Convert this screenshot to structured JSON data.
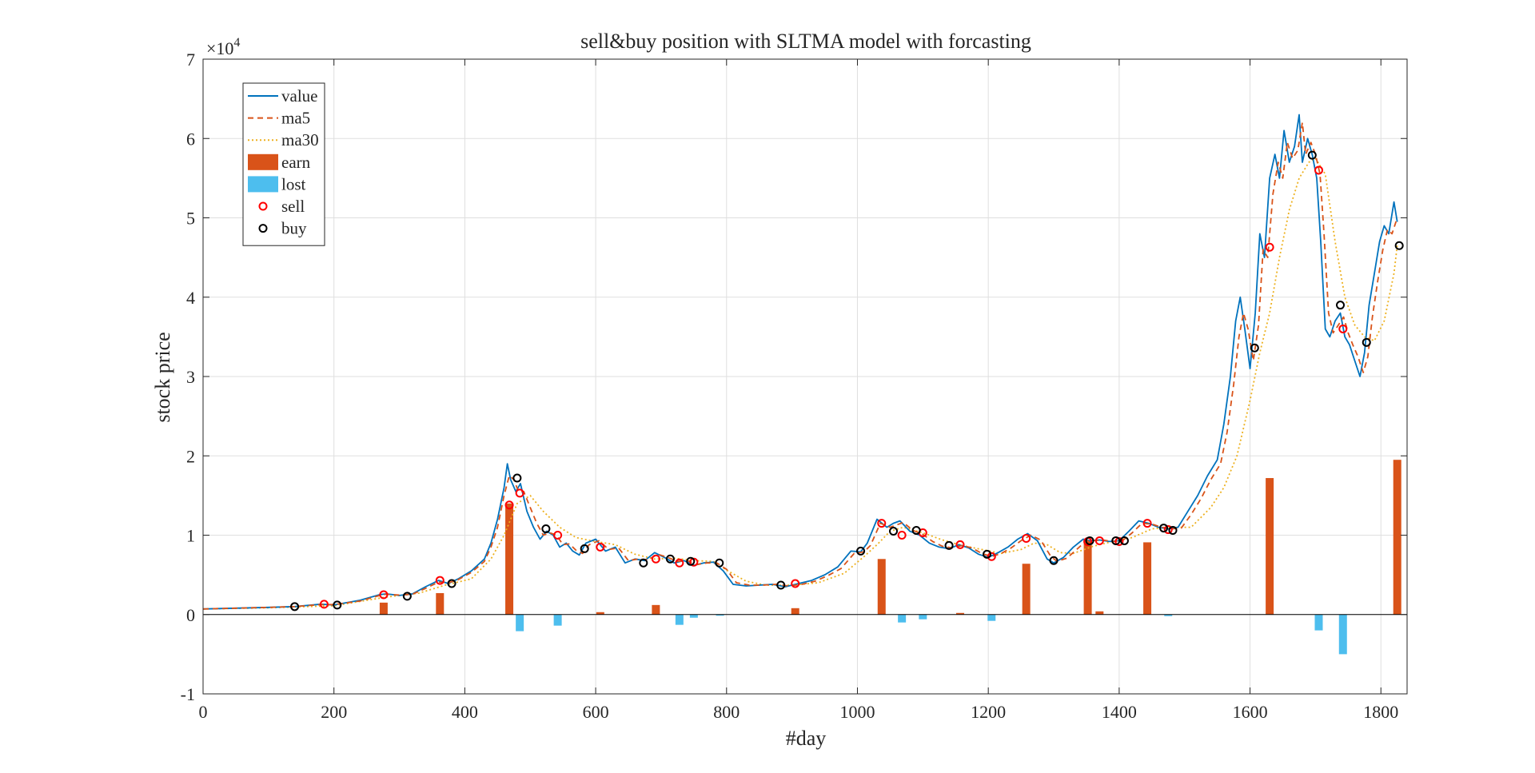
{
  "chart_data": {
    "type": "line",
    "title": "sell&buy position with SLTMA model with forcasting",
    "xlabel": "#day",
    "ylabel": "stock price",
    "y_exponent_label": "×10^4",
    "y_exponent_base": "×10",
    "y_exponent_power": "4",
    "xlim": [
      0,
      1840
    ],
    "ylim": [
      -10000,
      70000
    ],
    "x_ticks": [
      0,
      200,
      400,
      600,
      800,
      1000,
      1200,
      1400,
      1600,
      1800
    ],
    "x_tick_labels": [
      "0",
      "200",
      "400",
      "600",
      "800",
      "1000",
      "1200",
      "1400",
      "1600",
      "1800"
    ],
    "y_ticks": [
      -10000,
      0,
      10000,
      20000,
      30000,
      40000,
      50000,
      60000,
      70000
    ],
    "y_tick_labels": [
      "-1",
      "0",
      "1",
      "2",
      "3",
      "4",
      "5",
      "6",
      "7"
    ],
    "grid": true,
    "legend_placement": "top-left",
    "legend": [
      {
        "label": "value",
        "kind": "line-solid",
        "color": "#0072BD"
      },
      {
        "label": "ma5",
        "kind": "line-dashed",
        "color": "#D95319"
      },
      {
        "label": "ma30",
        "kind": "line-dotted",
        "color": "#EDB120"
      },
      {
        "label": "earn",
        "kind": "bar",
        "color": "#D95319"
      },
      {
        "label": "lost",
        "kind": "bar",
        "color": "#4DBEEE"
      },
      {
        "label": "sell",
        "kind": "marker",
        "color": "#FF0000"
      },
      {
        "label": "buy",
        "kind": "marker",
        "color": "#000000"
      }
    ],
    "series": [
      {
        "name": "value",
        "color": "#0072BD",
        "x": [
          0,
          50,
          100,
          140,
          180,
          200,
          240,
          270,
          280,
          300,
          320,
          340,
          360,
          375,
          390,
          410,
          430,
          440,
          450,
          460,
          465,
          470,
          478,
          485,
          495,
          505,
          515,
          525,
          535,
          545,
          555,
          565,
          575,
          585,
          600,
          615,
          630,
          645,
          660,
          675,
          690,
          705,
          720,
          735,
          750,
          765,
          780,
          795,
          810,
          830,
          850,
          870,
          890,
          910,
          930,
          950,
          970,
          990,
          1005,
          1015,
          1030,
          1045,
          1055,
          1065,
          1080,
          1095,
          1110,
          1125,
          1140,
          1155,
          1170,
          1185,
          1200,
          1215,
          1230,
          1245,
          1260,
          1275,
          1290,
          1300,
          1315,
          1330,
          1345,
          1355,
          1370,
          1385,
          1400,
          1415,
          1430,
          1445,
          1460,
          1475,
          1490,
          1505,
          1520,
          1535,
          1550,
          1560,
          1570,
          1578,
          1585,
          1592,
          1600,
          1608,
          1615,
          1622,
          1630,
          1638,
          1645,
          1652,
          1660,
          1668,
          1675,
          1680,
          1688,
          1695,
          1702,
          1708,
          1715,
          1722,
          1730,
          1738,
          1745,
          1752,
          1760,
          1768,
          1775,
          1782,
          1790,
          1798,
          1805,
          1812,
          1820,
          1825
        ],
        "values": [
          700,
          800,
          900,
          1000,
          1300,
          1200,
          1800,
          2500,
          2600,
          2400,
          2600,
          3500,
          4300,
          3900,
          4500,
          5500,
          7000,
          9000,
          12000,
          16000,
          19000,
          17000,
          15500,
          16500,
          13000,
          11000,
          9500,
          10500,
          10000,
          8500,
          9000,
          8000,
          7500,
          9000,
          9500,
          8000,
          8500,
          6500,
          7000,
          6800,
          7800,
          7200,
          6500,
          6800,
          6200,
          6500,
          6600,
          5500,
          3800,
          3600,
          3700,
          3800,
          3500,
          3900,
          4300,
          5000,
          6000,
          8000,
          7900,
          9000,
          12000,
          11000,
          11500,
          11800,
          10500,
          10000,
          9000,
          8500,
          8300,
          8800,
          8400,
          7600,
          7200,
          7800,
          8500,
          9500,
          10200,
          9300,
          7000,
          6500,
          7200,
          8500,
          9500,
          9300,
          9400,
          9200,
          9300,
          10500,
          11800,
          11500,
          11000,
          10800,
          11000,
          13000,
          15000,
          17500,
          19500,
          24000,
          30000,
          37000,
          40000,
          36000,
          31000,
          38000,
          48000,
          45000,
          55000,
          58000,
          55000,
          61000,
          57000,
          59000,
          63000,
          57000,
          60000,
          58000,
          55000,
          47000,
          36000,
          35000,
          37000,
          38000,
          35000,
          34000,
          32000,
          30000,
          33000,
          39000,
          43000,
          47000,
          49000,
          48000,
          52000,
          49500
        ]
      },
      {
        "name": "ma5",
        "color": "#D95319",
        "x": [
          0,
          50,
          100,
          140,
          180,
          200,
          240,
          270,
          280,
          300,
          320,
          340,
          360,
          375,
          390,
          410,
          430,
          440,
          450,
          460,
          468,
          475,
          482,
          490,
          500,
          510,
          520,
          530,
          540,
          550,
          560,
          570,
          580,
          590,
          605,
          620,
          635,
          650,
          665,
          680,
          695,
          710,
          725,
          740,
          755,
          770,
          785,
          800,
          815,
          835,
          855,
          875,
          895,
          915,
          935,
          955,
          975,
          995,
          1010,
          1020,
          1035,
          1050,
          1060,
          1070,
          1085,
          1100,
          1115,
          1130,
          1145,
          1160,
          1175,
          1190,
          1205,
          1220,
          1235,
          1250,
          1265,
          1280,
          1295,
          1305,
          1320,
          1335,
          1350,
          1360,
          1375,
          1390,
          1405,
          1420,
          1435,
          1450,
          1465,
          1480,
          1495,
          1510,
          1525,
          1540,
          1555,
          1565,
          1575,
          1583,
          1590,
          1597,
          1605,
          1613,
          1620,
          1627,
          1635,
          1643,
          1650,
          1657,
          1665,
          1673,
          1680,
          1685,
          1693,
          1700,
          1707,
          1713,
          1720,
          1727,
          1735,
          1743,
          1750,
          1757,
          1765,
          1773,
          1780,
          1787,
          1795,
          1803,
          1810,
          1817,
          1825
        ],
        "values": [
          700,
          800,
          900,
          1000,
          1250,
          1250,
          1700,
          2400,
          2550,
          2450,
          2550,
          3300,
          4100,
          4000,
          4400,
          5300,
          6700,
          8500,
          11000,
          15000,
          17500,
          17000,
          15500,
          15500,
          13500,
          11500,
          10000,
          10300,
          10000,
          8800,
          8900,
          8100,
          7700,
          8800,
          9300,
          8200,
          8400,
          6800,
          7000,
          6900,
          7600,
          7200,
          6700,
          6800,
          6300,
          6500,
          6500,
          5700,
          4000,
          3700,
          3700,
          3800,
          3600,
          3800,
          4200,
          4900,
          5800,
          7700,
          7900,
          8700,
          11500,
          11000,
          11300,
          11600,
          10600,
          10100,
          9200,
          8600,
          8400,
          8700,
          8400,
          7700,
          7300,
          7700,
          8400,
          9300,
          10000,
          9400,
          7400,
          6700,
          7100,
          8200,
          9300,
          9300,
          9400,
          9200,
          9300,
          10300,
          11500,
          11400,
          11000,
          10800,
          10900,
          12600,
          14600,
          17000,
          19000,
          23000,
          29000,
          35000,
          38000,
          36000,
          32000,
          36500,
          46000,
          45000,
          53000,
          57000,
          55000,
          59500,
          57500,
          58500,
          62000,
          58000,
          59500,
          58000,
          55500,
          48000,
          38000,
          35500,
          36500,
          37500,
          35500,
          34000,
          32500,
          30500,
          32500,
          37500,
          42000,
          46000,
          48500,
          48000,
          50000
        ]
      },
      {
        "name": "ma30",
        "color": "#EDB120",
        "x": [
          0,
          100,
          200,
          280,
          330,
          370,
          410,
          440,
          460,
          480,
          500,
          520,
          545,
          570,
          600,
          630,
          660,
          690,
          720,
          750,
          780,
          800,
          830,
          860,
          900,
          940,
          980,
          1010,
          1030,
          1050,
          1070,
          1100,
          1130,
          1160,
          1190,
          1220,
          1250,
          1270,
          1290,
          1310,
          1330,
          1360,
          1390,
          1420,
          1450,
          1480,
          1510,
          1540,
          1560,
          1580,
          1600,
          1615,
          1630,
          1645,
          1660,
          1675,
          1690,
          1700,
          1715,
          1730,
          1745,
          1760,
          1775,
          1790,
          1805,
          1820,
          1825
        ],
        "values": [
          700,
          850,
          1100,
          2200,
          2700,
          3700,
          4500,
          7000,
          10000,
          14000,
          15000,
          13000,
          11000,
          9700,
          9200,
          8800,
          7600,
          7000,
          7100,
          6800,
          6700,
          5600,
          4200,
          3700,
          3700,
          4000,
          5200,
          7300,
          8800,
          10500,
          11000,
          10300,
          9400,
          8700,
          8200,
          7700,
          8200,
          9000,
          8800,
          7800,
          7700,
          8600,
          9200,
          9700,
          10800,
          11000,
          11000,
          13500,
          16000,
          20000,
          27000,
          33000,
          38000,
          45000,
          51000,
          55000,
          57000,
          57500,
          55500,
          47000,
          40000,
          36500,
          35000,
          34500,
          37000,
          43000,
          46500
        ]
      }
    ],
    "earn": [
      {
        "x": 276,
        "value": 1500
      },
      {
        "x": 362,
        "value": 2700
      },
      {
        "x": 468,
        "value": 14000
      },
      {
        "x": 607,
        "value": 300
      },
      {
        "x": 692,
        "value": 1200
      },
      {
        "x": 905,
        "value": 800
      },
      {
        "x": 1037,
        "value": 7000
      },
      {
        "x": 1157,
        "value": 200
      },
      {
        "x": 1258,
        "value": 6400
      },
      {
        "x": 1352,
        "value": 9400
      },
      {
        "x": 1370,
        "value": 400
      },
      {
        "x": 1443,
        "value": 9100
      },
      {
        "x": 1630,
        "value": 17200
      },
      {
        "x": 1825,
        "value": 19500
      }
    ],
    "lost": [
      {
        "x": 484,
        "value": -2100
      },
      {
        "x": 542,
        "value": -1400
      },
      {
        "x": 728,
        "value": -1300
      },
      {
        "x": 750,
        "value": -400
      },
      {
        "x": 790,
        "value": -100
      },
      {
        "x": 1068,
        "value": -1000
      },
      {
        "x": 1100,
        "value": -600
      },
      {
        "x": 1205,
        "value": -800
      },
      {
        "x": 1475,
        "value": -200
      },
      {
        "x": 1705,
        "value": -2000
      },
      {
        "x": 1742,
        "value": -5000
      }
    ],
    "sell": [
      {
        "x": 185,
        "y": 1300
      },
      {
        "x": 276,
        "y": 2500
      },
      {
        "x": 362,
        "y": 4300
      },
      {
        "x": 468,
        "y": 13800
      },
      {
        "x": 484,
        "y": 15300
      },
      {
        "x": 542,
        "y": 10000
      },
      {
        "x": 607,
        "y": 8500
      },
      {
        "x": 692,
        "y": 7000
      },
      {
        "x": 728,
        "y": 6500
      },
      {
        "x": 750,
        "y": 6600
      },
      {
        "x": 905,
        "y": 3900
      },
      {
        "x": 1037,
        "y": 11500
      },
      {
        "x": 1068,
        "y": 10000
      },
      {
        "x": 1100,
        "y": 10300
      },
      {
        "x": 1157,
        "y": 8800
      },
      {
        "x": 1205,
        "y": 7300
      },
      {
        "x": 1258,
        "y": 9600
      },
      {
        "x": 1352,
        "y": 9200
      },
      {
        "x": 1370,
        "y": 9300
      },
      {
        "x": 1400,
        "y": 9200
      },
      {
        "x": 1443,
        "y": 11500
      },
      {
        "x": 1475,
        "y": 10700
      },
      {
        "x": 1630,
        "y": 46300
      },
      {
        "x": 1705,
        "y": 56000
      },
      {
        "x": 1742,
        "y": 36000
      }
    ],
    "buy": [
      {
        "x": 140,
        "y": 1000
      },
      {
        "x": 205,
        "y": 1200
      },
      {
        "x": 312,
        "y": 2300
      },
      {
        "x": 380,
        "y": 3900
      },
      {
        "x": 480,
        "y": 17200
      },
      {
        "x": 524,
        "y": 10800
      },
      {
        "x": 583,
        "y": 8300
      },
      {
        "x": 673,
        "y": 6500
      },
      {
        "x": 714,
        "y": 7000
      },
      {
        "x": 745,
        "y": 6700
      },
      {
        "x": 789,
        "y": 6500
      },
      {
        "x": 883,
        "y": 3700
      },
      {
        "x": 1005,
        "y": 8000
      },
      {
        "x": 1055,
        "y": 10500
      },
      {
        "x": 1090,
        "y": 10600
      },
      {
        "x": 1140,
        "y": 8700
      },
      {
        "x": 1198,
        "y": 7600
      },
      {
        "x": 1300,
        "y": 6800
      },
      {
        "x": 1355,
        "y": 9300
      },
      {
        "x": 1395,
        "y": 9300
      },
      {
        "x": 1408,
        "y": 9300
      },
      {
        "x": 1468,
        "y": 10900
      },
      {
        "x": 1482,
        "y": 10600
      },
      {
        "x": 1607,
        "y": 33600
      },
      {
        "x": 1695,
        "y": 57900
      },
      {
        "x": 1738,
        "y": 39000
      },
      {
        "x": 1778,
        "y": 34300
      },
      {
        "x": 1828,
        "y": 46500
      }
    ]
  }
}
